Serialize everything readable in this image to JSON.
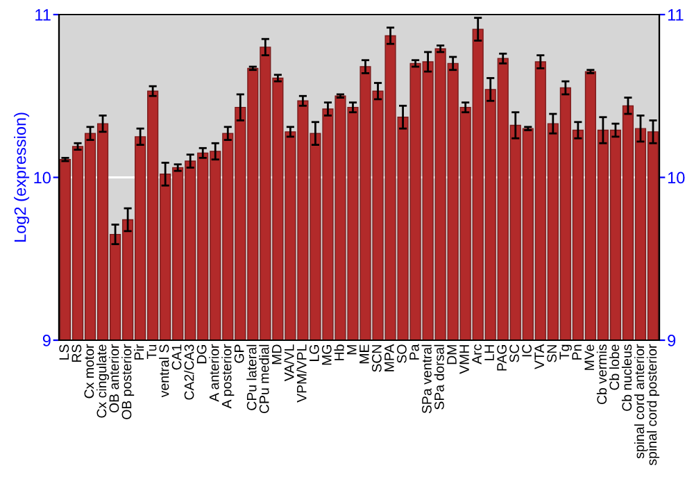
{
  "chart_data": {
    "type": "bar",
    "ylabel": "Log2 (expression)",
    "categories": [
      "LS",
      "RS",
      "Cx motor",
      "Cx cingulate",
      "OB anterior",
      "OB posterior",
      "Pir",
      "Tu",
      "ventral S",
      "CA1",
      "CA2/CA3",
      "DG",
      "A anterior",
      "A posterior",
      "GP",
      "CPu lateral",
      "CPu medial",
      "MD",
      "VA/VL",
      "VPM/VPL",
      "LG",
      "MG",
      "Hb",
      "M",
      "ME",
      "SCN",
      "MPA",
      "SO",
      "Pa",
      "SPa ventral",
      "SPa dorsal",
      "DM",
      "VMH",
      "Arc",
      "LH",
      "PAG",
      "SC",
      "IC",
      "VTA",
      "SN",
      "Tg",
      "Pn",
      "MVe",
      "Cb vermis",
      "Cb lobe",
      "Cb nucleus",
      "spinal cord anterior",
      "spinal cord posterior"
    ],
    "values": [
      10.11,
      10.19,
      10.27,
      10.33,
      9.65,
      9.74,
      10.25,
      10.53,
      10.02,
      10.06,
      10.1,
      10.15,
      10.16,
      10.27,
      10.43,
      10.67,
      10.8,
      10.61,
      10.28,
      10.47,
      10.27,
      10.42,
      10.5,
      10.43,
      10.68,
      10.53,
      10.87,
      10.37,
      10.7,
      10.71,
      10.79,
      10.7,
      10.43,
      10.91,
      10.54,
      10.73,
      10.32,
      10.3,
      10.71,
      10.33,
      10.55,
      10.29,
      10.65,
      10.29,
      10.29,
      10.44,
      10.3,
      10.28
    ],
    "errors": [
      0.01,
      0.02,
      0.04,
      0.05,
      0.06,
      0.07,
      0.05,
      0.03,
      0.07,
      0.02,
      0.04,
      0.03,
      0.05,
      0.04,
      0.08,
      0.01,
      0.05,
      0.02,
      0.03,
      0.03,
      0.07,
      0.04,
      0.01,
      0.03,
      0.04,
      0.05,
      0.05,
      0.07,
      0.02,
      0.06,
      0.02,
      0.04,
      0.03,
      0.07,
      0.07,
      0.03,
      0.08,
      0.01,
      0.04,
      0.06,
      0.04,
      0.05,
      0.01,
      0.08,
      0.04,
      0.05,
      0.08,
      0.07
    ],
    "color": "#b22a2a",
    "ylim": [
      9,
      11
    ],
    "yticks": [
      9,
      10,
      11
    ],
    "y2lim": [
      9,
      11
    ],
    "y2ticks": [
      9,
      10,
      11
    ],
    "grid": "y",
    "legend": false
  }
}
